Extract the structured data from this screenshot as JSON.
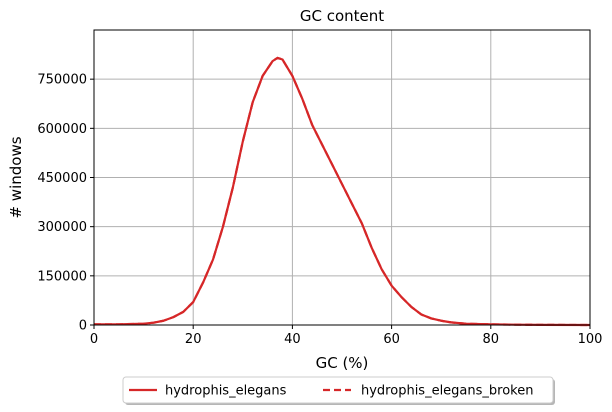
{
  "chart_data": {
    "type": "line",
    "title": "GC content",
    "xlabel": "GC (%)",
    "ylabel": "# windows",
    "xlim": [
      0,
      100
    ],
    "ylim": [
      0,
      900000
    ],
    "xticks": [
      0,
      20,
      40,
      60,
      80,
      100
    ],
    "yticks": [
      0,
      150000,
      300000,
      450000,
      600000,
      750000
    ],
    "grid": true,
    "legend_position": "bottom-center-outside",
    "series": [
      {
        "name": "hydrophis_elegans",
        "color": "#d62728",
        "style": "solid",
        "x": [
          0,
          5,
          10,
          12,
          14,
          16,
          18,
          20,
          22,
          24,
          26,
          28,
          30,
          32,
          34,
          36,
          37,
          38,
          40,
          42,
          44,
          46,
          48,
          50,
          52,
          54,
          56,
          58,
          60,
          62,
          64,
          66,
          68,
          70,
          72,
          75,
          80,
          85,
          90,
          100
        ],
        "y": [
          2000,
          2000,
          4000,
          7000,
          13000,
          24000,
          40000,
          70000,
          130000,
          200000,
          300000,
          420000,
          560000,
          680000,
          760000,
          805000,
          815000,
          810000,
          760000,
          690000,
          610000,
          550000,
          490000,
          430000,
          370000,
          310000,
          235000,
          170000,
          120000,
          85000,
          55000,
          32000,
          20000,
          13000,
          8000,
          4000,
          2000,
          1000,
          500,
          0
        ]
      },
      {
        "name": "hydrophis_elegans_broken",
        "color": "#d62728",
        "style": "dashed",
        "x": [
          0,
          5,
          10,
          12,
          14,
          16,
          18,
          20,
          22,
          24,
          26,
          28,
          30,
          32,
          34,
          36,
          37,
          38,
          40,
          42,
          44,
          46,
          48,
          50,
          52,
          54,
          56,
          58,
          60,
          62,
          64,
          66,
          68,
          70,
          72,
          75,
          80,
          85,
          90,
          100
        ],
        "y": [
          2000,
          2000,
          4000,
          7000,
          13000,
          24000,
          40000,
          70000,
          130000,
          200000,
          300000,
          420000,
          560000,
          680000,
          760000,
          805000,
          815000,
          810000,
          760000,
          690000,
          610000,
          550000,
          490000,
          430000,
          370000,
          310000,
          235000,
          170000,
          120000,
          85000,
          55000,
          32000,
          20000,
          13000,
          8000,
          4000,
          2000,
          1000,
          500,
          0
        ]
      }
    ]
  }
}
